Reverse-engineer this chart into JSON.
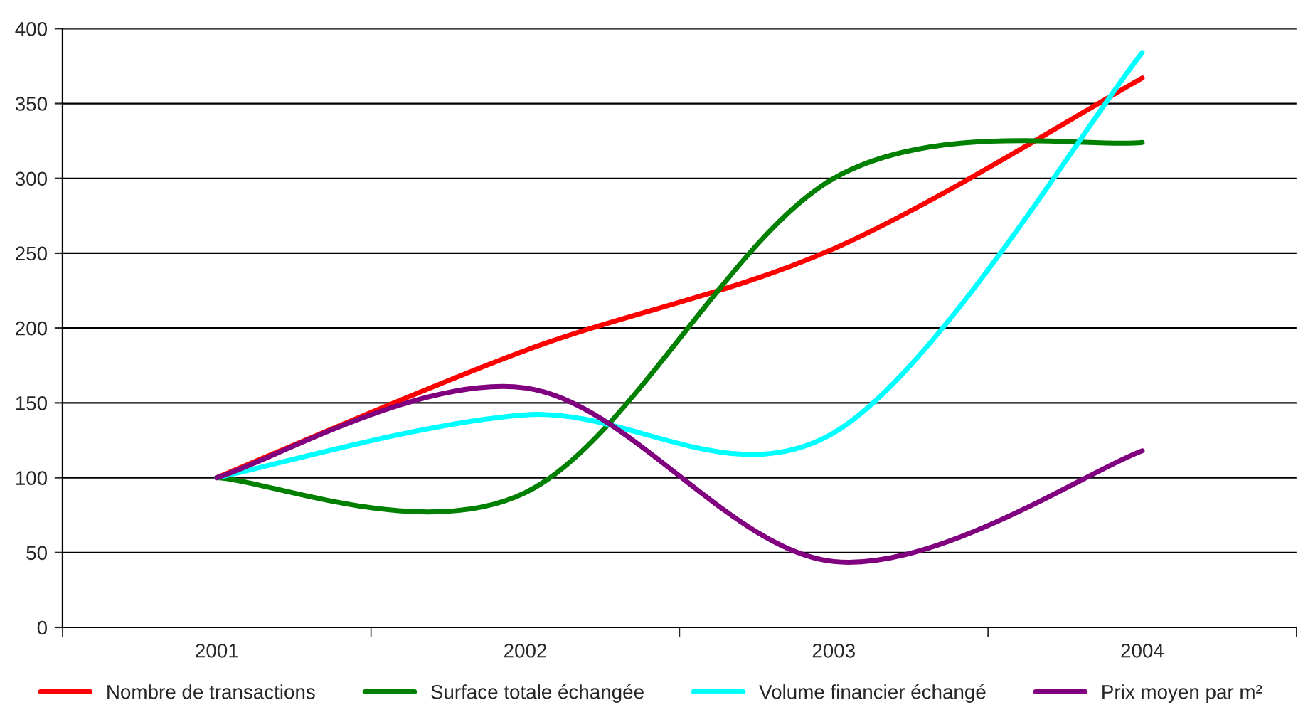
{
  "chart_data": {
    "type": "line",
    "categories": [
      "2001",
      "2002",
      "2003",
      "2004"
    ],
    "series": [
      {
        "name": "Nombre de transactions",
        "color": "#ff0000",
        "values": [
          100,
          185,
          253,
          367
        ]
      },
      {
        "name": "Surface totale échangée",
        "color": "#008000",
        "values": [
          100,
          90,
          300,
          324
        ]
      },
      {
        "name": "Volume financier échangé",
        "color": "#00ffff",
        "values": [
          100,
          142,
          130,
          384
        ]
      },
      {
        "name": "Prix moyen par m²",
        "color": "#800080",
        "values": [
          100,
          160,
          44,
          118
        ]
      }
    ],
    "ylim": [
      0,
      400
    ],
    "yticks": [
      0,
      50,
      100,
      150,
      200,
      250,
      300,
      350,
      400
    ],
    "grid": "y",
    "legend": "bottom",
    "marker": "none",
    "line_style": "solid"
  }
}
